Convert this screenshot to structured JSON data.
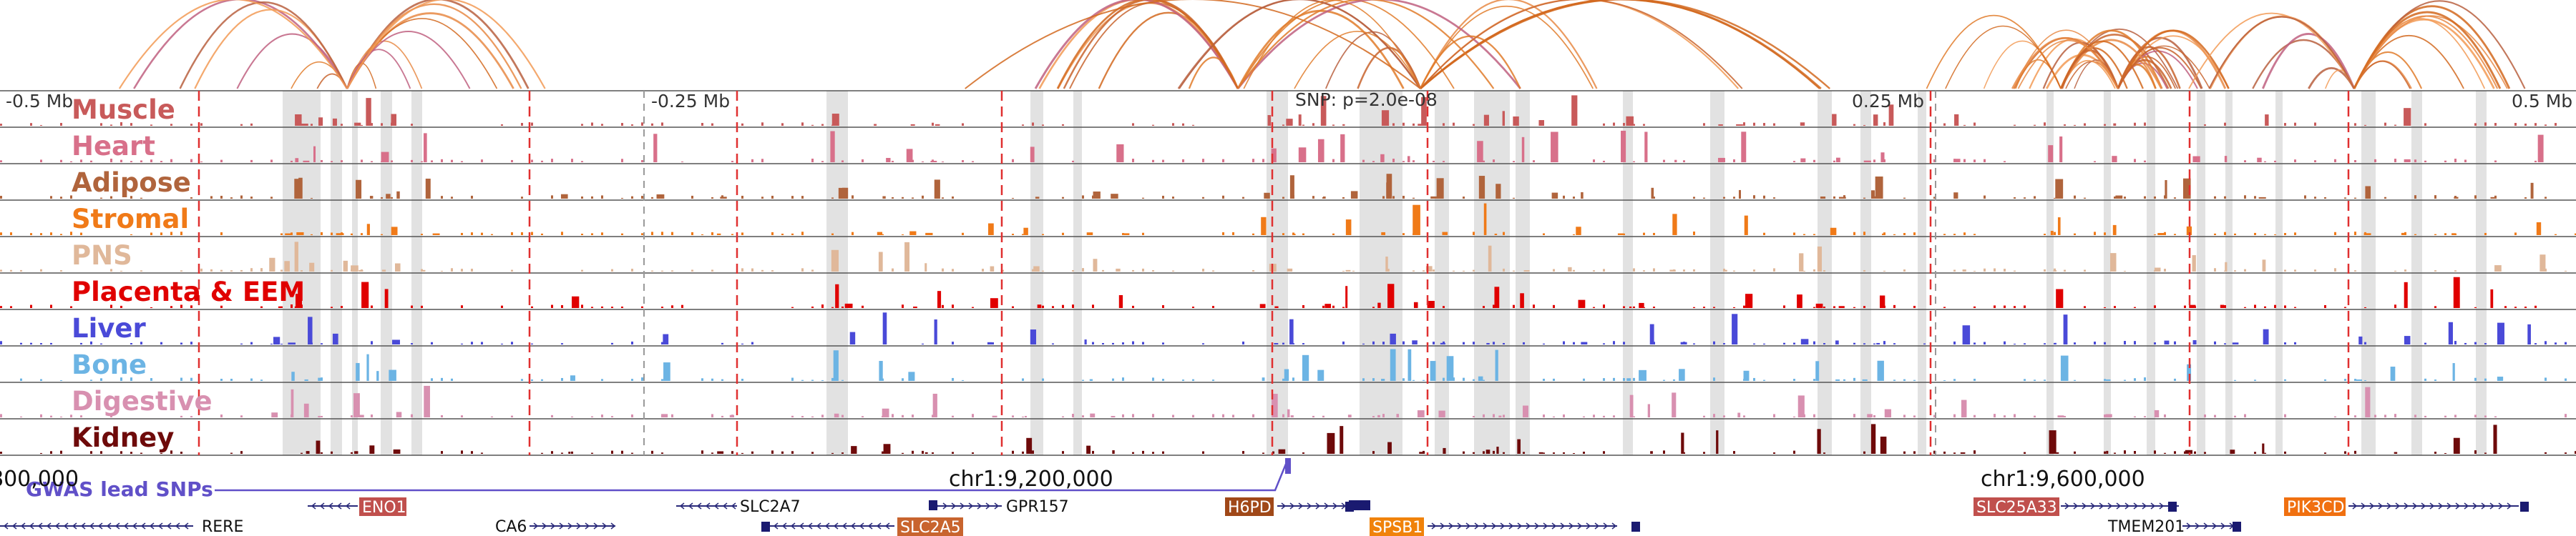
{
  "position_ticks": [
    "-0.5 Mb",
    "-0.25 Mb",
    "0.25 Mb",
    "0.5 Mb"
  ],
  "snp_label": "SNP: p=2.0e-08",
  "tracks": [
    {
      "label": "Muscle",
      "color": "#c85a5a"
    },
    {
      "label": "Heart",
      "color": "#d8708a"
    },
    {
      "label": "Adipose",
      "color": "#b0643c"
    },
    {
      "label": "Stromal",
      "color": "#f07a18"
    },
    {
      "label": "PNS",
      "color": "#e0b89a"
    },
    {
      "label": "Placenta & EEM",
      "color": "#e00000"
    },
    {
      "label": "Liver",
      "color": "#4a4ad8"
    },
    {
      "label": "Bone",
      "color": "#6cb4e4"
    },
    {
      "label": "Digestive",
      "color": "#d890b0"
    },
    {
      "label": "Kidney",
      "color": "#6e0a0a"
    }
  ],
  "gwas_label": "GWAS lead SNPs",
  "gwas_color": "#6050c8",
  "coordinates": [
    "800,000",
    "chr1:9,200,000",
    "chr1:9,600,000"
  ],
  "genes": {
    "plain": [
      "RERE",
      "CA6",
      "SLC2A7",
      "GPR157",
      "TMEM201"
    ],
    "boxed": [
      {
        "label": "ENO1",
        "color": "#c0504d"
      },
      {
        "label": "SLC2A5",
        "color": "#c8642e"
      },
      {
        "label": "H6PD",
        "color": "#a04818"
      },
      {
        "label": "SPSB1",
        "color": "#f0820a"
      },
      {
        "label": "SLC25A33",
        "color": "#c0504d"
      },
      {
        "label": "PIK3CD",
        "color": "#f07010"
      }
    ]
  }
}
